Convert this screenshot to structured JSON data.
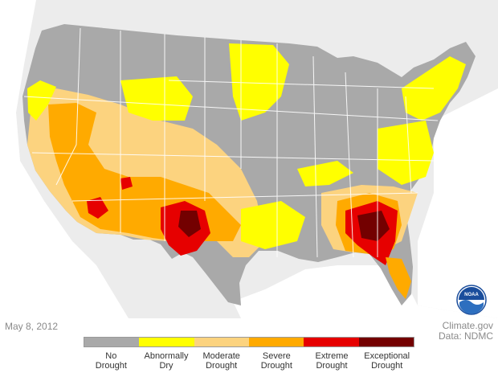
{
  "date": "May 8, 2012",
  "credit": {
    "line1": "Climate.gov",
    "line2": "Data: NDMC"
  },
  "logo_text": "NOAA",
  "legend": [
    {
      "line1": "No",
      "line2": "Drought",
      "color": "#a9a9a9"
    },
    {
      "line1": "Abnormally",
      "line2": "Dry",
      "color": "#ffff00"
    },
    {
      "line1": "Moderate",
      "line2": "Drought",
      "color": "#fcd37f"
    },
    {
      "line1": "Severe",
      "line2": "Drought",
      "color": "#ffaa00"
    },
    {
      "line1": "Extreme",
      "line2": "Drought",
      "color": "#e60000"
    },
    {
      "line1": "Exceptional",
      "line2": "Drought",
      "color": "#730000"
    }
  ],
  "colors": {
    "ocean": "#ffffff",
    "surrounding_land": "#ececec",
    "state_border": "#ffffff"
  }
}
